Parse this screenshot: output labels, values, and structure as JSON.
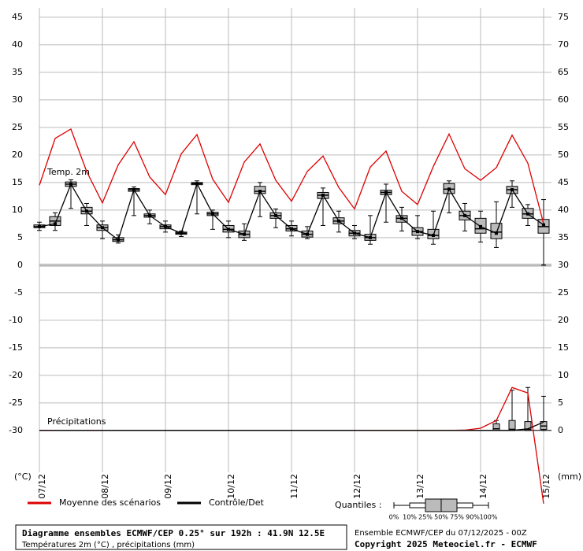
{
  "chart_data": {
    "type": "boxplot",
    "ylim": [
      -37.6,
      46.7
    ],
    "yticks": [
      -30,
      -25,
      -20,
      -15,
      -10,
      -5,
      0,
      5,
      10,
      15,
      20,
      25,
      30,
      35,
      40,
      45
    ],
    "y2lim": [
      -7.6,
      76.7
    ],
    "y2ticks": [
      0,
      5,
      10,
      15,
      20,
      25,
      30,
      35,
      40,
      45,
      50,
      55,
      60,
      65,
      70,
      75
    ],
    "grid": true,
    "y_unit_label": "(°C)",
    "y2_unit_label": "(mm)",
    "x_labels": [
      "07/12",
      "08/12",
      "09/12",
      "10/12",
      "11/12",
      "12/12",
      "13/12",
      "14/12",
      "15/12"
    ],
    "annotations": [
      "Temp. 2m",
      "Précipitations"
    ],
    "series": [
      {
        "name": "Moyenne des scénarios",
        "color": "#dd0000",
        "values": [
          14.5,
          23,
          24.7,
          17,
          11.3,
          18.2,
          22.4,
          16,
          12.8,
          20.2,
          23.7,
          15.6,
          11.4,
          18.7,
          22,
          15.4,
          11.6,
          17,
          19.8,
          14.1,
          10.2,
          17.8,
          20.7,
          13.4,
          11,
          17.9,
          23.8,
          17.5,
          15.4,
          17.7,
          23.6,
          18.5,
          7.5
        ]
      },
      {
        "name": "Contrôle/Det",
        "color": "#000000",
        "values": [
          7,
          7.5,
          14.7,
          9.8,
          6.8,
          4.6,
          13.7,
          9,
          7,
          5.8,
          14.8,
          9.3,
          6.5,
          5.6,
          13.4,
          9,
          6.6,
          5.6,
          12.7,
          8,
          5.8,
          5,
          13.2,
          8.5,
          6.1,
          5.4,
          13.8,
          9,
          7,
          5.8,
          13.7,
          9.3,
          7.3
        ]
      }
    ],
    "temp_boxes": [
      [
        6.3,
        6.8,
        7,
        7.3,
        7.8
      ],
      [
        6.3,
        7.2,
        8,
        8.8,
        9.5
      ],
      [
        10.3,
        14.3,
        14.7,
        15.1,
        15.5
      ],
      [
        7.2,
        9.3,
        9.8,
        10.5,
        11.2
      ],
      [
        4.8,
        6.3,
        6.8,
        7.3,
        8
      ],
      [
        4,
        4.3,
        4.6,
        5,
        5.5
      ],
      [
        9,
        13.4,
        13.7,
        13.9,
        14.2
      ],
      [
        7.5,
        8.7,
        9,
        9.3,
        10
      ],
      [
        6,
        6.6,
        7,
        7.3,
        8
      ],
      [
        5.2,
        5.6,
        5.8,
        6,
        6.2
      ],
      [
        9.3,
        14.6,
        14.8,
        15,
        15.3
      ],
      [
        6.5,
        9,
        9.3,
        9.6,
        10
      ],
      [
        5,
        6,
        6.5,
        7.2,
        8
      ],
      [
        4.5,
        5,
        5.6,
        6.2,
        7.5
      ],
      [
        8.8,
        13,
        13.4,
        14.3,
        15
      ],
      [
        6.8,
        8.5,
        9,
        9.5,
        10.2
      ],
      [
        5.3,
        6.2,
        6.6,
        7.2,
        8
      ],
      [
        4.8,
        5.1,
        5.6,
        6.2,
        7
      ],
      [
        7.2,
        12.1,
        12.7,
        13.2,
        14
      ],
      [
        6,
        7.5,
        8,
        8.6,
        9.8
      ],
      [
        4.8,
        5.3,
        5.8,
        6.3,
        7.2
      ],
      [
        3.8,
        4.5,
        5,
        5.6,
        9
      ],
      [
        7.8,
        12.8,
        13.2,
        13.6,
        14.7
      ],
      [
        6.2,
        7.8,
        8.5,
        9,
        10.5
      ],
      [
        4.8,
        5.4,
        6.1,
        6.8,
        9
      ],
      [
        3.8,
        4.8,
        5.4,
        6.5,
        9.8
      ],
      [
        9.5,
        13,
        13.8,
        14.8,
        15.3
      ],
      [
        6.2,
        8.2,
        9,
        9.8,
        11.2
      ],
      [
        4.2,
        5.8,
        6.6,
        8.5,
        9.8
      ],
      [
        3.2,
        4.8,
        6,
        7.6,
        11.5
      ],
      [
        10.5,
        13,
        13.7,
        14.3,
        15.3
      ],
      [
        7.2,
        8.5,
        9.3,
        10.3,
        11
      ],
      [
        0,
        5.8,
        7,
        8.3,
        11.9
      ]
    ],
    "precip_mean": {
      "color": "#dd0000",
      "axis": "y2",
      "values": [
        0,
        0,
        null,
        0,
        0,
        null,
        null,
        null,
        null,
        null,
        null,
        null,
        null,
        null,
        null,
        null,
        null,
        null,
        null,
        null,
        0,
        0,
        0,
        0,
        0,
        0,
        0,
        0.05,
        0.4,
        1.8,
        7.8,
        6.8,
        -13.3
      ]
    },
    "precip_control": {
      "color": "#000000",
      "axis": "y2",
      "values": [
        0,
        0,
        0,
        0,
        0,
        0,
        0,
        0,
        0,
        0,
        0,
        0,
        0,
        0,
        0,
        0,
        0,
        0,
        0,
        0,
        0,
        0,
        0,
        0,
        0,
        0,
        0,
        0,
        0,
        0,
        0,
        0.3,
        1.5
      ]
    },
    "precip_boxes": [
      null,
      null,
      null,
      null,
      null,
      null,
      null,
      null,
      null,
      null,
      null,
      null,
      null,
      null,
      null,
      null,
      null,
      null,
      null,
      null,
      null,
      null,
      null,
      null,
      null,
      null,
      null,
      null,
      null,
      [
        0,
        0,
        0.3,
        1.2,
        1.8
      ],
      [
        0,
        0,
        0.2,
        1.8,
        7.3
      ],
      [
        0,
        0,
        0.2,
        1.6,
        7.8
      ],
      [
        0,
        0.2,
        0.8,
        1.6,
        6.2
      ]
    ],
    "quantiles_title": "Quantiles :",
    "quantile_labels": [
      "0%",
      "10%",
      "25%",
      "50%",
      "75%",
      "90%",
      "100%"
    ],
    "footer": {
      "title": "Diagramme ensembles ECMWF/CEP 0.25° sur 192h : 41.9N 12.5E",
      "subtitle": "Températures 2m (°C) , précipitations (mm)",
      "run": "Ensemble ECMWF/CEP du 07/12/2025 - 00Z",
      "copyright": "Copyright 2025 Meteociel.fr - ECMWF"
    }
  }
}
